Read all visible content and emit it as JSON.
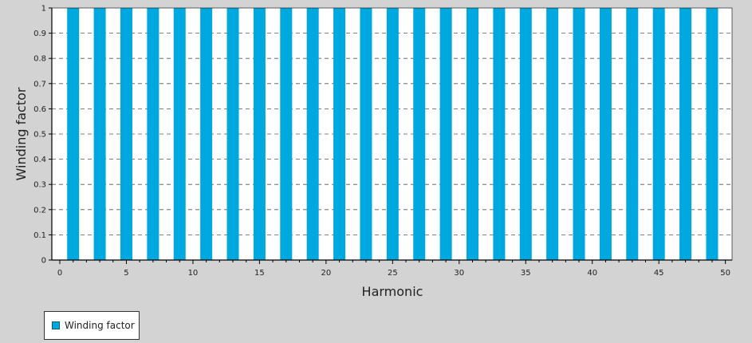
{
  "chart_data": {
    "type": "bar",
    "x": [
      1,
      3,
      5,
      7,
      9,
      11,
      13,
      15,
      17,
      19,
      21,
      23,
      25,
      27,
      29,
      31,
      33,
      35,
      37,
      39,
      41,
      43,
      45,
      47,
      49
    ],
    "series": [
      {
        "name": "Winding factor",
        "values": [
          1,
          1,
          1,
          1,
          1,
          1,
          1,
          1,
          1,
          1,
          1,
          1,
          1,
          1,
          1,
          1,
          1,
          1,
          1,
          1,
          1,
          1,
          1,
          1,
          1
        ]
      }
    ],
    "xlabel": "Harmonic",
    "ylabel": "Winding factor",
    "xlim": [
      -0.6,
      50.5
    ],
    "ylim": [
      0,
      1
    ],
    "xticks": [
      "0",
      "5",
      "10",
      "15",
      "20",
      "25",
      "30",
      "35",
      "40",
      "45",
      "50"
    ],
    "yticks": [
      "0",
      "0.1",
      "0.2",
      "0.3",
      "0.4",
      "0.5",
      "0.6",
      "0.7",
      "0.8",
      "0.9",
      "1"
    ],
    "grid": "horizontal dashed",
    "legend_position": "bottom-left",
    "bar_color": "#00a8e0"
  }
}
